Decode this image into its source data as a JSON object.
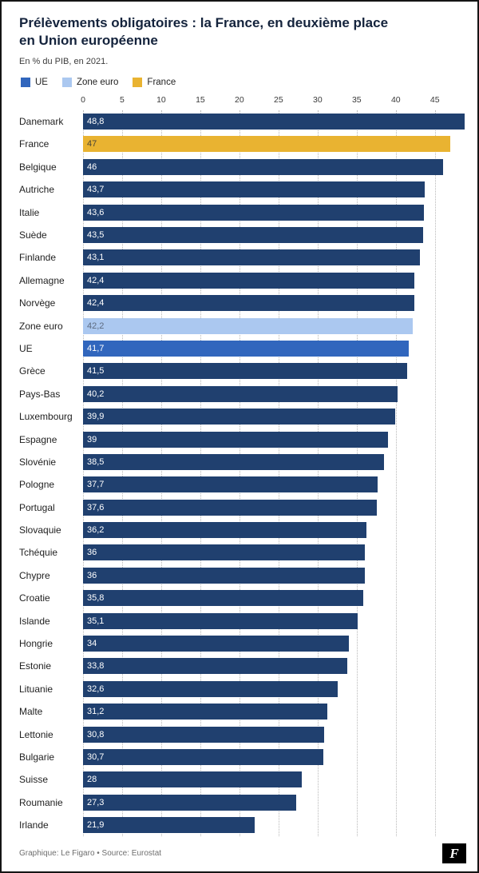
{
  "header": {
    "title_line1": "Prélèvements obligatoires : la France, en deuxième place",
    "title_line2": "en Union européenne",
    "subtitle": "En % du PIB, en 2021."
  },
  "legend": [
    {
      "label": "UE",
      "color": "#3166bd"
    },
    {
      "label": "Zone euro",
      "color": "#abc8f0"
    },
    {
      "label": "France",
      "color": "#e9b331"
    }
  ],
  "palette": {
    "member": {
      "bar": "#20406f",
      "text": "#ffffff"
    },
    "france": {
      "bar": "#e9b331",
      "text": "#4c4636"
    },
    "zone_euro": {
      "bar": "#abc8f0",
      "text": "#5d6b80"
    },
    "ue": {
      "bar": "#3166bd",
      "text": "#ffffff"
    }
  },
  "footer": {
    "credit": "Graphique: Le Figaro • Source: Eurostat",
    "logo_letter": "F"
  },
  "chart_data": {
    "type": "bar",
    "orientation": "horizontal",
    "title": "Prélèvements obligatoires : la France, en deuxième place en Union européenne",
    "subtitle": "En % du PIB, en 2021.",
    "source": "Eurostat",
    "unit": "% du PIB",
    "xlim": [
      0,
      48.8
    ],
    "x_ticks": [
      0,
      5,
      10,
      15,
      20,
      25,
      30,
      35,
      40,
      45
    ],
    "grid": "dotted-vertical",
    "legend_position": "top",
    "rows": [
      {
        "label": "Danemark",
        "value": 48.8,
        "display": "48,8",
        "role": "member"
      },
      {
        "label": "France",
        "value": 47,
        "display": "47",
        "role": "france"
      },
      {
        "label": "Belgique",
        "value": 46,
        "display": "46",
        "role": "member"
      },
      {
        "label": "Autriche",
        "value": 43.7,
        "display": "43,7",
        "role": "member"
      },
      {
        "label": "Italie",
        "value": 43.6,
        "display": "43,6",
        "role": "member"
      },
      {
        "label": "Suède",
        "value": 43.5,
        "display": "43,5",
        "role": "member"
      },
      {
        "label": "Finlande",
        "value": 43.1,
        "display": "43,1",
        "role": "member"
      },
      {
        "label": "Allemagne",
        "value": 42.4,
        "display": "42,4",
        "role": "member"
      },
      {
        "label": "Norvège",
        "value": 42.4,
        "display": "42,4",
        "role": "member"
      },
      {
        "label": "Zone euro",
        "value": 42.2,
        "display": "42,2",
        "role": "zone_euro"
      },
      {
        "label": "UE",
        "value": 41.7,
        "display": "41,7",
        "role": "ue"
      },
      {
        "label": "Grèce",
        "value": 41.5,
        "display": "41,5",
        "role": "member"
      },
      {
        "label": "Pays-Bas",
        "value": 40.2,
        "display": "40,2",
        "role": "member"
      },
      {
        "label": "Luxembourg",
        "value": 39.9,
        "display": "39,9",
        "role": "member"
      },
      {
        "label": "Espagne",
        "value": 39,
        "display": "39",
        "role": "member"
      },
      {
        "label": "Slovénie",
        "value": 38.5,
        "display": "38,5",
        "role": "member"
      },
      {
        "label": "Pologne",
        "value": 37.7,
        "display": "37,7",
        "role": "member"
      },
      {
        "label": "Portugal",
        "value": 37.6,
        "display": "37,6",
        "role": "member"
      },
      {
        "label": "Slovaquie",
        "value": 36.2,
        "display": "36,2",
        "role": "member"
      },
      {
        "label": "Tchéquie",
        "value": 36,
        "display": "36",
        "role": "member"
      },
      {
        "label": "Chypre",
        "value": 36,
        "display": "36",
        "role": "member"
      },
      {
        "label": "Croatie",
        "value": 35.8,
        "display": "35,8",
        "role": "member"
      },
      {
        "label": "Islande",
        "value": 35.1,
        "display": "35,1",
        "role": "member"
      },
      {
        "label": "Hongrie",
        "value": 34,
        "display": "34",
        "role": "member"
      },
      {
        "label": "Estonie",
        "value": 33.8,
        "display": "33,8",
        "role": "member"
      },
      {
        "label": "Lituanie",
        "value": 32.6,
        "display": "32,6",
        "role": "member"
      },
      {
        "label": "Malte",
        "value": 31.2,
        "display": "31,2",
        "role": "member"
      },
      {
        "label": "Lettonie",
        "value": 30.8,
        "display": "30,8",
        "role": "member"
      },
      {
        "label": "Bulgarie",
        "value": 30.7,
        "display": "30,7",
        "role": "member"
      },
      {
        "label": "Suisse",
        "value": 28,
        "display": "28",
        "role": "member"
      },
      {
        "label": "Roumanie",
        "value": 27.3,
        "display": "27,3",
        "role": "member"
      },
      {
        "label": "Irlande",
        "value": 21.9,
        "display": "21,9",
        "role": "member"
      }
    ]
  }
}
